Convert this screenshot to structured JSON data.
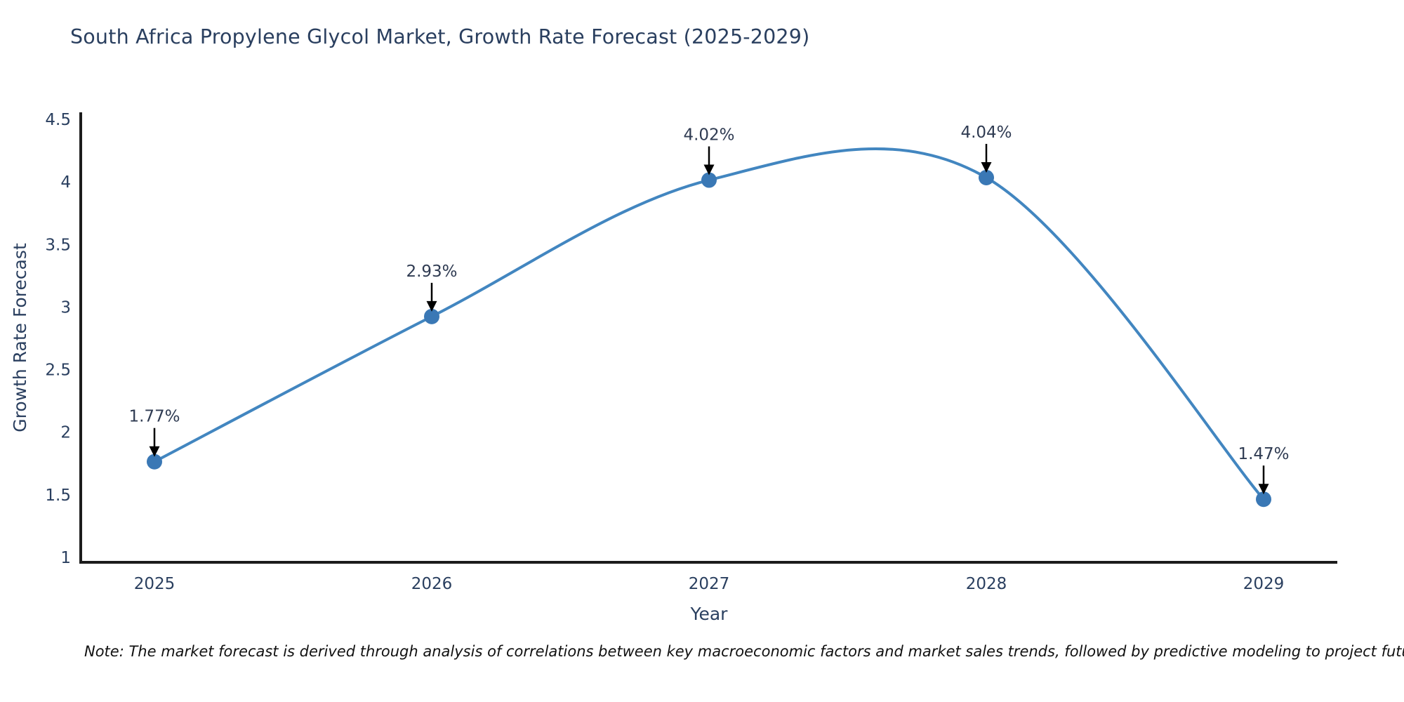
{
  "title": "South Africa Propylene Glycol Market, Growth Rate Forecast (2025-2029)",
  "note": "Note: The market forecast is derived through analysis of correlations between key macroeconomic factors and market sales trends, followed by predictive modeling to project future sales",
  "chart_data": {
    "type": "line",
    "line_shape": "spline",
    "title": "South Africa Propylene Glycol Market, Growth Rate Forecast (2025-2029)",
    "xlabel": "Year",
    "ylabel": "Growth Rate Forecast",
    "categories": [
      "2025",
      "2026",
      "2027",
      "2028",
      "2029"
    ],
    "values": [
      1.77,
      2.93,
      4.02,
      4.04,
      1.47
    ],
    "point_labels": [
      "1.77%",
      "2.93%",
      "4.02%",
      "4.04%",
      "1.47%"
    ],
    "ylim": [
      1,
      4.5
    ],
    "ytick_labels": [
      "1",
      "1.5",
      "2",
      "2.5",
      "3",
      "3.5",
      "4",
      "4.5"
    ],
    "ytick_values": [
      1,
      1.5,
      2,
      2.5,
      3,
      3.5,
      4,
      4.5
    ],
    "grid": false,
    "legend": "none",
    "markers": true,
    "annotations_arrow": true,
    "colors": {
      "line": "#4286c0",
      "marker": "#3a78b5",
      "axis": "#1c1c1c",
      "text": "#2a3f5f",
      "annotation_text": "#2f3b52",
      "annotation_arrow": "#000000",
      "note_text": "#111111",
      "background": "#ffffff"
    }
  }
}
